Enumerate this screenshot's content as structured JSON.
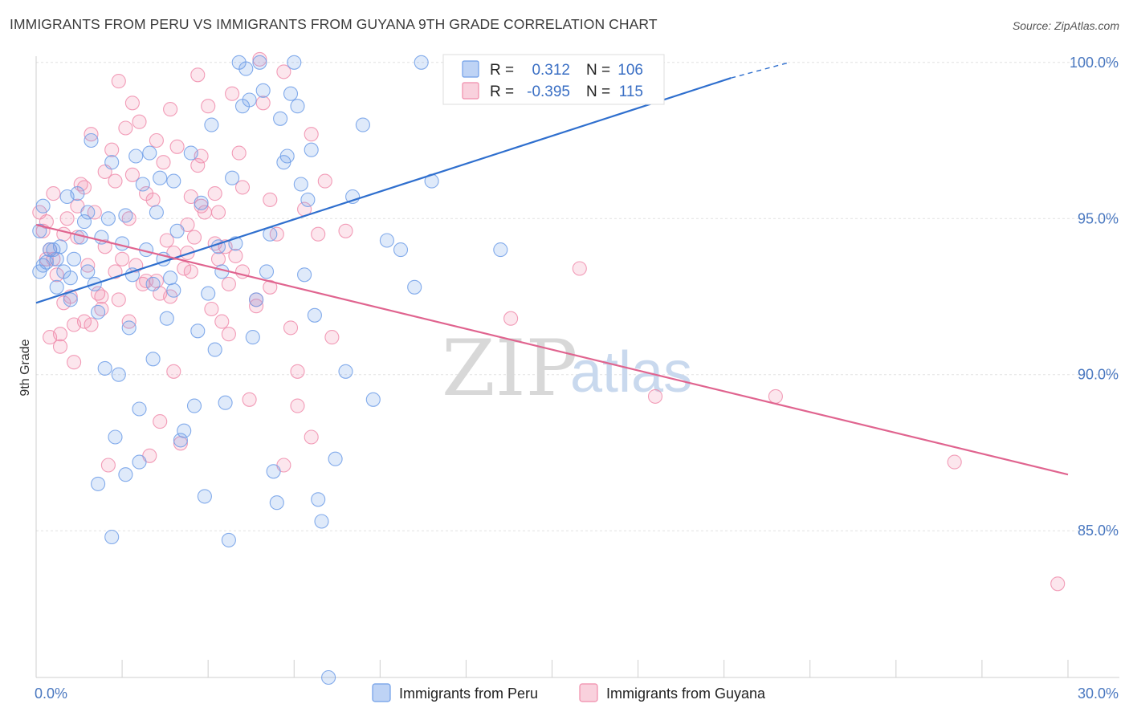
{
  "header": {
    "title": "IMMIGRANTS FROM PERU VS IMMIGRANTS FROM GUYANA 9TH GRADE CORRELATION CHART",
    "source": "Source: ZipAtlas.com"
  },
  "watermark": {
    "zip": "ZIP",
    "atlas": "atlas"
  },
  "legend": {
    "rows": [
      {
        "r_label": "R =",
        "r_value": "0.312",
        "n_label": "N =",
        "n_value": "106",
        "color": "#6f9ee8"
      },
      {
        "r_label": "R =",
        "r_value": "-0.395",
        "n_label": "N =",
        "n_value": "115",
        "color": "#f08cab"
      }
    ]
  },
  "bottom_legend": [
    "Immigrants from Peru",
    "Immigrants from Guyana"
  ],
  "chart_data": {
    "type": "scatter",
    "title": "IMMIGRANTS FROM PERU VS IMMIGRANTS FROM GUYANA 9TH GRADE CORRELATION CHART",
    "xlabel": "",
    "ylabel": "9th Grade",
    "xlim": [
      0,
      30
    ],
    "ylim": [
      80.3,
      100.2
    ],
    "x_tick_labels": [
      "0.0%",
      "30.0%"
    ],
    "y_ticks": [
      85,
      90,
      95,
      100
    ],
    "y_tick_labels": [
      "85.0%",
      "90.0%",
      "95.0%",
      "100.0%"
    ],
    "grid": true,
    "legend_position": "top-center",
    "colors": {
      "peru": "#6f9ee8",
      "peru_line": "#2f6fce",
      "guyana": "#f08cab",
      "guyana_line": "#e0648f"
    },
    "series": [
      {
        "name": "Immigrants from Peru",
        "trend": {
          "x": [
            0,
            20.2
          ],
          "y": [
            92.3,
            99.5
          ],
          "dashed_to": [
            21.9,
            100.0
          ]
        },
        "x": [
          0.1,
          0.1,
          0.2,
          0.3,
          0.5,
          0.6,
          0.7,
          0.8,
          0.9,
          1.0,
          1.1,
          1.2,
          1.3,
          1.4,
          1.5,
          1.5,
          1.6,
          1.7,
          1.8,
          1.9,
          2.0,
          2.1,
          2.2,
          2.3,
          2.4,
          2.5,
          2.6,
          2.7,
          2.8,
          2.9,
          3.0,
          3.1,
          3.2,
          3.3,
          3.4,
          3.5,
          3.6,
          3.7,
          3.8,
          3.9,
          4.0,
          4.1,
          4.2,
          4.3,
          4.5,
          4.6,
          4.7,
          4.8,
          4.9,
          5.0,
          5.1,
          5.2,
          5.3,
          5.4,
          5.5,
          5.6,
          5.7,
          5.8,
          5.9,
          6.0,
          6.1,
          6.2,
          6.3,
          6.4,
          6.5,
          6.6,
          6.7,
          6.8,
          6.9,
          7.0,
          7.1,
          7.2,
          7.3,
          7.4,
          7.5,
          7.6,
          7.7,
          7.8,
          7.9,
          8.0,
          8.1,
          8.2,
          8.3,
          8.5,
          8.7,
          9.0,
          9.2,
          9.5,
          9.8,
          10.2,
          10.6,
          11.0,
          11.5,
          0.2,
          0.4,
          0.6,
          1.0,
          1.8,
          2.2,
          2.6,
          3.0,
          3.4,
          4.0,
          13.5,
          14.2,
          11.2
        ],
        "y": [
          93.3,
          94.6,
          95.4,
          93.6,
          94.0,
          92.8,
          94.1,
          93.3,
          95.7,
          92.4,
          93.7,
          95.8,
          94.4,
          94.9,
          93.3,
          95.2,
          97.5,
          92.9,
          92.0,
          94.4,
          90.2,
          95.0,
          96.8,
          88.0,
          90.0,
          94.2,
          95.1,
          91.5,
          93.2,
          97.0,
          88.9,
          96.1,
          94.0,
          97.1,
          92.9,
          95.2,
          96.3,
          93.7,
          91.8,
          93.1,
          96.2,
          94.6,
          87.9,
          88.2,
          97.1,
          89.0,
          91.4,
          95.5,
          86.1,
          92.6,
          98.0,
          90.8,
          94.1,
          93.3,
          89.1,
          84.7,
          96.3,
          94.2,
          100.0,
          98.6,
          99.8,
          98.8,
          91.2,
          92.4,
          100.0,
          99.1,
          93.3,
          94.5,
          86.9,
          85.9,
          98.2,
          96.8,
          97.0,
          99.0,
          100.0,
          98.6,
          96.1,
          93.2,
          95.6,
          97.2,
          91.9,
          86.0,
          85.3,
          80.3,
          87.3,
          90.1,
          95.7,
          98.0,
          89.2,
          94.3,
          94.0,
          92.8,
          96.2,
          93.5,
          94.0,
          93.7,
          93.1,
          86.5,
          84.8,
          86.8,
          87.2,
          90.5,
          92.7,
          94.0,
          99.2,
          100.0
        ]
      },
      {
        "name": "Immigrants from Guyana",
        "trend": {
          "x": [
            0,
            30
          ],
          "y": [
            94.8,
            86.8
          ]
        },
        "x": [
          0.1,
          0.2,
          0.3,
          0.4,
          0.5,
          0.6,
          0.7,
          0.8,
          0.9,
          1.0,
          1.1,
          1.2,
          1.3,
          1.4,
          1.5,
          1.6,
          1.7,
          1.8,
          1.9,
          2.0,
          2.1,
          2.2,
          2.3,
          2.4,
          2.5,
          2.6,
          2.7,
          2.8,
          2.9,
          3.0,
          3.1,
          3.2,
          3.3,
          3.4,
          3.5,
          3.6,
          3.7,
          3.8,
          3.9,
          4.0,
          4.1,
          4.2,
          4.3,
          4.4,
          4.5,
          4.6,
          4.7,
          4.8,
          4.9,
          5.0,
          5.1,
          5.2,
          5.3,
          5.4,
          5.5,
          5.6,
          5.7,
          5.8,
          5.9,
          6.0,
          6.2,
          6.4,
          6.6,
          6.8,
          7.0,
          7.2,
          7.4,
          7.6,
          7.8,
          8.0,
          8.2,
          8.4,
          8.6,
          9.0,
          13.8,
          15.8,
          21.5,
          26.7,
          29.7,
          0.3,
          0.5,
          0.8,
          1.2,
          1.6,
          2.0,
          2.4,
          2.8,
          3.2,
          3.6,
          4.0,
          4.4,
          4.8,
          5.2,
          5.6,
          6.0,
          6.4,
          6.8,
          7.2,
          7.6,
          8.0,
          2.3,
          3.5,
          4.5,
          6.5,
          18.0,
          1.4,
          1.9,
          2.7,
          3.9,
          4.7,
          5.3,
          1.1,
          0.7,
          0.4
        ],
        "y": [
          95.2,
          94.6,
          93.7,
          94.0,
          95.8,
          93.2,
          91.3,
          94.5,
          95.0,
          92.5,
          90.4,
          94.4,
          96.1,
          91.7,
          93.5,
          97.7,
          95.2,
          92.6,
          92.1,
          94.1,
          87.1,
          97.2,
          96.2,
          92.4,
          93.7,
          97.9,
          91.7,
          96.4,
          93.5,
          98.1,
          92.9,
          93.0,
          87.4,
          95.6,
          93.0,
          88.5,
          96.8,
          94.3,
          92.5,
          90.1,
          97.3,
          87.8,
          93.4,
          93.9,
          93.3,
          94.4,
          96.7,
          97.0,
          95.2,
          98.6,
          92.1,
          95.8,
          95.2,
          91.7,
          94.1,
          92.9,
          99.0,
          93.8,
          97.1,
          93.3,
          89.2,
          92.4,
          98.7,
          95.6,
          94.5,
          99.7,
          91.5,
          90.1,
          95.3,
          97.7,
          94.5,
          96.2,
          91.2,
          94.6,
          91.8,
          93.4,
          89.3,
          87.2,
          83.3,
          94.9,
          93.7,
          92.3,
          95.4,
          91.6,
          96.5,
          99.4,
          98.7,
          95.8,
          92.6,
          93.9,
          94.8,
          95.4,
          94.2,
          91.3,
          96.0,
          92.2,
          92.8,
          87.1,
          89.0,
          88.0,
          93.3,
          97.5,
          95.7,
          100.1,
          89.3,
          96.0,
          92.5,
          95.0,
          98.5,
          99.6,
          93.7,
          91.6,
          90.9,
          91.2
        ]
      }
    ]
  }
}
